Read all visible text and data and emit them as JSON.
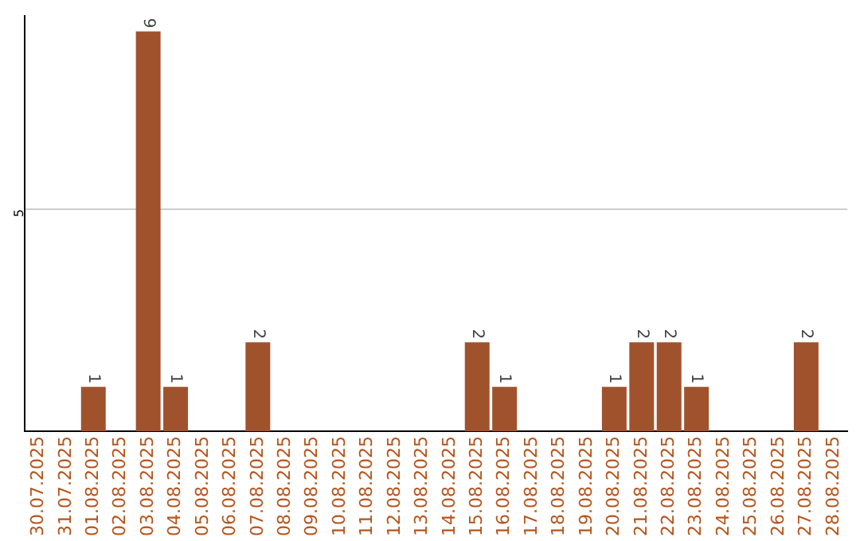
{
  "chart_data": {
    "type": "bar",
    "categories": [
      "30.07.2025",
      "31.07.2025",
      "01.08.2025",
      "02.08.2025",
      "03.08.2025",
      "04.08.2025",
      "05.08.2025",
      "06.08.2025",
      "07.08.2025",
      "08.08.2025",
      "09.08.2025",
      "10.08.2025",
      "11.08.2025",
      "12.08.2025",
      "13.08.2025",
      "14.08.2025",
      "15.08.2025",
      "16.08.2025",
      "17.08.2025",
      "18.08.2025",
      "19.08.2025",
      "20.08.2025",
      "21.08.2025",
      "22.08.2025",
      "23.08.2025",
      "24.08.2025",
      "25.08.2025",
      "26.08.2025",
      "27.08.2025",
      "28.08.2025"
    ],
    "values": [
      0,
      0,
      1,
      0,
      9,
      1,
      0,
      0,
      2,
      0,
      0,
      0,
      0,
      0,
      0,
      0,
      2,
      1,
      0,
      0,
      0,
      1,
      2,
      2,
      1,
      0,
      0,
      0,
      2,
      0
    ],
    "value_labels": [
      null,
      null,
      "1",
      null,
      "9",
      "1",
      null,
      null,
      "2",
      null,
      null,
      null,
      null,
      null,
      null,
      null,
      "2",
      "1",
      null,
      null,
      null,
      "1",
      "2",
      "2",
      "1",
      null,
      null,
      null,
      "2",
      null
    ],
    "color": "#a0522d",
    "ylim": [
      0,
      9.35
    ],
    "yticks": [
      5
    ],
    "grid": "y",
    "legend": false
  }
}
